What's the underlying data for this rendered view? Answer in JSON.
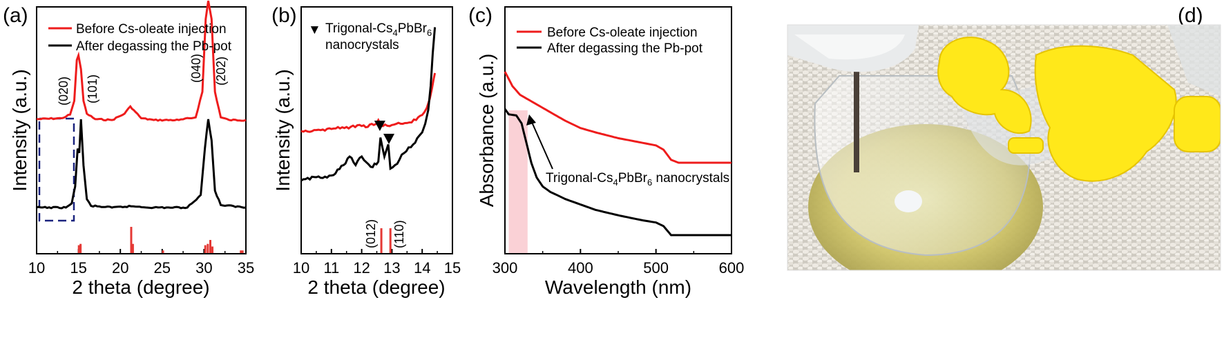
{
  "colors": {
    "red": "#ee1c1c",
    "black": "#000000",
    "reference": "#e53935",
    "box": "#1a237e",
    "highlight": "#f9c6cc"
  },
  "chart_data": [
    {
      "id": "a",
      "type": "line",
      "panel_label": "(a)",
      "xlabel": "2 theta (degree)",
      "ylabel": "Intensity (a.u.)",
      "xlim": [
        10,
        35
      ],
      "xticks": [
        "10",
        "15",
        "20",
        "25",
        "30",
        "35"
      ],
      "legend": {
        "position": "top-left",
        "entries": [
          {
            "label": "Before Cs-oleate injection",
            "color": "#ee1c1c"
          },
          {
            "label": "After degassing the Pb-pot",
            "color": "#000000"
          }
        ]
      },
      "peak_labels": [
        "(020)",
        "(101)",
        "(040)",
        "(202)"
      ],
      "series": [
        {
          "name": "Before Cs-oleate injection",
          "color": "#ee1c1c",
          "x": [
            10,
            13,
            14,
            14.5,
            14.8,
            15.0,
            15.3,
            15.6,
            16.0,
            17,
            19,
            20.5,
            21.2,
            21.6,
            22.5,
            24,
            27,
            29,
            29.8,
            30.2,
            30.5,
            30.9,
            31.3,
            32,
            33,
            35
          ],
          "y": [
            1,
            1.1,
            1.5,
            3,
            7.5,
            8,
            6.5,
            3,
            1.6,
            1,
            0.9,
            1.6,
            2.4,
            2.0,
            1.1,
            0.9,
            0.9,
            1.2,
            4,
            12,
            14,
            12,
            4,
            1.2,
            0.9,
            0.9
          ]
        },
        {
          "name": "After degassing the Pb-pot",
          "color": "#000000",
          "x": [
            10,
            13.5,
            14.2,
            14.6,
            14.9,
            15.1,
            15.3,
            15.6,
            16.0,
            16.5,
            19,
            21.3,
            24,
            28,
            29.6,
            30.1,
            30.5,
            30.9,
            31.3,
            32,
            35
          ],
          "y": [
            0,
            0,
            0.5,
            2.5,
            7,
            6.5,
            10.5,
            5,
            1,
            0.2,
            0,
            0.15,
            0,
            0,
            1.5,
            7,
            10.5,
            8,
            2,
            0.3,
            0
          ]
        },
        {
          "name": "reference",
          "type": "stick",
          "color": "#e53935",
          "x": [
            15.05,
            15.25,
            21.3,
            21.5,
            25.1,
            30.15,
            30.45,
            30.75,
            31.0,
            34.4,
            34.6
          ],
          "y": [
            0.3,
            0.35,
            1.0,
            0.35,
            0.1,
            0.3,
            0.35,
            0.5,
            0.25,
            0.1,
            0.1
          ]
        }
      ]
    },
    {
      "id": "b",
      "type": "line",
      "panel_label": "(b)",
      "xlabel": "2 theta (degree)",
      "ylabel": "Intensity (a.u.)",
      "xlim": [
        10,
        15
      ],
      "xticks": [
        "10",
        "11",
        "12",
        "13",
        "14",
        "15"
      ],
      "legend_text": {
        "marker": "▼",
        "line1": "Trigonal-Cs",
        "sub1": "4",
        "mid": "PbBr",
        "sub2": "6",
        "line2": "nanocrystals"
      },
      "peak_labels": [
        "(012)",
        "(110)"
      ],
      "marker_x": [
        12.6,
        12.9
      ],
      "series": [
        {
          "name": "Before Cs-oleate injection",
          "color": "#ee1c1c",
          "x": [
            10,
            10.5,
            11,
            11.5,
            12,
            12.4,
            12.55,
            12.7,
            13,
            13.5,
            13.8,
            14.0,
            14.15,
            14.25,
            14.32,
            14.38,
            14.42
          ],
          "y": [
            3.2,
            3.3,
            3.4,
            3.6,
            3.7,
            3.8,
            4.3,
            3.7,
            3.8,
            4.0,
            4.3,
            4.8,
            5.5,
            6.4,
            7.4,
            8.4,
            9.0
          ]
        },
        {
          "name": "After degassing the Pb-pot",
          "color": "#000000",
          "x": [
            10,
            10.5,
            11,
            11.4,
            11.6,
            11.8,
            12.0,
            12.3,
            12.55,
            12.62,
            12.75,
            12.88,
            12.95,
            13.1,
            13.4,
            13.7,
            13.9,
            14.0,
            14.1,
            14.2,
            14.28,
            14.35,
            14.42
          ],
          "y": [
            0.1,
            0.3,
            0.4,
            1.0,
            1.5,
            1.0,
            1.5,
            0.9,
            1.2,
            2.6,
            1.5,
            2.2,
            0.8,
            1.0,
            1.7,
            2.2,
            2.7,
            2.9,
            3.4,
            4.2,
            5.6,
            7.5,
            9.0
          ]
        },
        {
          "name": "reference",
          "type": "stick",
          "color": "#e53935",
          "x": [
            12.65,
            12.95
          ],
          "y": [
            1,
            1
          ]
        }
      ]
    },
    {
      "id": "c",
      "type": "line",
      "panel_label": "(c)",
      "xlabel": "Wavelength (nm)",
      "ylabel": "Absorbance (a.u.)",
      "xlim": [
        300,
        600
      ],
      "xticks": [
        "300",
        "400",
        "500",
        "600"
      ],
      "legend": {
        "position": "top-left",
        "entries": [
          {
            "label": "Before Cs-oleate injection",
            "color": "#ee1c1c"
          },
          {
            "label": "After degassing the Pb-pot",
            "color": "#000000"
          }
        ]
      },
      "annotation": {
        "pre": "Trigonal-Cs",
        "sub1": "4",
        "mid": "PbBr",
        "sub2": "6",
        "post": " nanocrystals"
      },
      "highlight_range": [
        305,
        330
      ],
      "series": [
        {
          "name": "Before Cs-oleate injection",
          "color": "#ee1c1c",
          "x": [
            300,
            310,
            320,
            340,
            360,
            380,
            400,
            420,
            450,
            480,
            500,
            510,
            520,
            530,
            600
          ],
          "y": [
            5.7,
            5.2,
            4.9,
            4.6,
            4.3,
            4.0,
            3.75,
            3.6,
            3.4,
            3.25,
            3.15,
            3.0,
            2.65,
            2.55,
            2.55
          ]
        },
        {
          "name": "After degassing the Pb-pot",
          "color": "#000000",
          "x": [
            300,
            305,
            315,
            322,
            328,
            335,
            342,
            350,
            360,
            380,
            400,
            420,
            450,
            480,
            500,
            510,
            520,
            600
          ],
          "y": [
            4.0,
            3.85,
            3.82,
            3.6,
            3.1,
            2.5,
            2.1,
            1.85,
            1.7,
            1.5,
            1.35,
            1.2,
            1.05,
            0.92,
            0.85,
            0.75,
            0.5,
            0.5
          ]
        }
      ]
    }
  ],
  "photo": {
    "panel_label": "(d)"
  }
}
